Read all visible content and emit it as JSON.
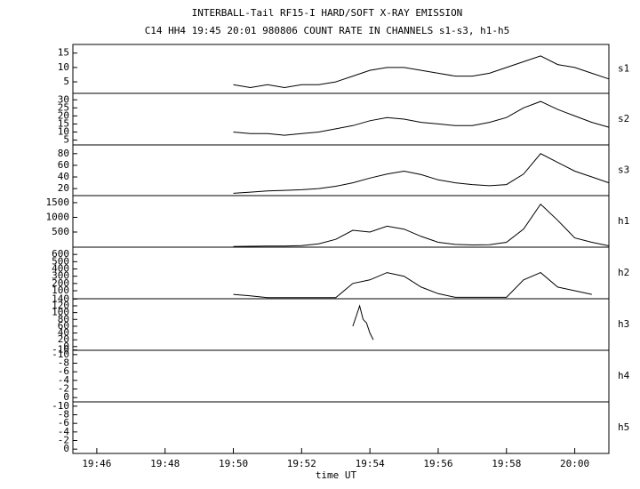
{
  "chart_data": [
    {
      "type": "line",
      "title": "INTERBALL-Tail RF15-I HARD/SOFT X-RAY EMISSION",
      "subtitle": "C14 HH4 19:45 20:01 980806  COUNT RATE IN CHANNELS s1-s3, h1-h5",
      "label": "s1",
      "x": [
        1190,
        1190.5,
        1191,
        1191.5,
        1192,
        1192.5,
        1193,
        1193.5,
        1194,
        1194.5,
        1195,
        1195.5,
        1196,
        1196.5,
        1197,
        1197.5,
        1198,
        1198.5,
        1199,
        1199.5,
        1200,
        1200.5,
        1201
      ],
      "values": [
        4,
        3,
        4,
        3,
        4,
        4,
        5,
        7,
        9,
        10,
        10,
        9,
        8,
        7,
        7,
        8,
        10,
        12,
        14,
        11,
        10,
        8,
        6
      ],
      "xlim": [
        1185.3,
        1201
      ],
      "ylim": [
        1,
        18
      ],
      "yticks": [
        5,
        10,
        15
      ],
      "color": "#000000"
    },
    {
      "type": "line",
      "label": "s2",
      "x": [
        1190,
        1190.5,
        1191,
        1191.5,
        1192,
        1192.5,
        1193,
        1193.5,
        1194,
        1194.5,
        1195,
        1195.5,
        1196,
        1196.5,
        1197,
        1197.5,
        1198,
        1198.5,
        1199,
        1199.5,
        1200,
        1200.5,
        1201
      ],
      "values": [
        10,
        9,
        9,
        8,
        9,
        10,
        12,
        14,
        17,
        19,
        18,
        16,
        15,
        14,
        14,
        16,
        19,
        25,
        29,
        24,
        20,
        16,
        13
      ],
      "xlim": [
        1185.3,
        1201
      ],
      "ylim": [
        2,
        34
      ],
      "yticks": [
        5,
        10,
        15,
        20,
        25,
        30
      ],
      "color": "#000000"
    },
    {
      "type": "line",
      "label": "s3",
      "x": [
        1190,
        1190.5,
        1191,
        1191.5,
        1192,
        1192.5,
        1193,
        1193.5,
        1194,
        1194.5,
        1195,
        1195.5,
        1196,
        1196.5,
        1197,
        1197.5,
        1198,
        1198.5,
        1199,
        1199.5,
        1200,
        1200.5,
        1201
      ],
      "values": [
        12,
        14,
        16,
        17,
        18,
        20,
        24,
        30,
        38,
        45,
        50,
        44,
        35,
        30,
        27,
        25,
        27,
        45,
        80,
        65,
        50,
        40,
        30
      ],
      "xlim": [
        1185.3,
        1201
      ],
      "ylim": [
        8,
        95
      ],
      "yticks": [
        20,
        40,
        60,
        80
      ],
      "color": "#000000"
    },
    {
      "type": "line",
      "label": "h1",
      "x": [
        1190,
        1190.5,
        1191,
        1191.5,
        1192,
        1192.5,
        1193,
        1193.5,
        1194,
        1194.5,
        1195,
        1195.5,
        1196,
        1196.5,
        1197,
        1197.5,
        1198,
        1198.5,
        1199,
        1199.5,
        1200,
        1200.5,
        1201
      ],
      "values": [
        10,
        15,
        20,
        25,
        40,
        100,
        250,
        560,
        500,
        700,
        600,
        350,
        150,
        80,
        60,
        70,
        150,
        600,
        1450,
        900,
        300,
        150,
        30
      ],
      "xlim": [
        1185.3,
        1201
      ],
      "ylim": [
        -15,
        1740
      ],
      "yticks": [
        500,
        1000,
        1500
      ],
      "color": "#000000"
    },
    {
      "type": "line",
      "label": "h2",
      "x": [
        1190,
        1190.5,
        1191,
        1191.5,
        1192,
        1192.5,
        1193,
        1193.5,
        1194,
        1194.5,
        1195,
        1195.5,
        1196,
        1196.5,
        1197,
        1197.5,
        1198,
        1198.5,
        1199,
        1199.5,
        1200,
        1200.5
      ],
      "values": [
        50,
        30,
        5,
        5,
        5,
        5,
        5,
        200,
        250,
        350,
        300,
        150,
        60,
        10,
        10,
        10,
        10,
        250,
        350,
        150,
        100,
        50
      ],
      "xlim": [
        1185.3,
        1201
      ],
      "ylim": [
        -10,
        700
      ],
      "yticks": [
        100,
        200,
        300,
        400,
        500,
        600
      ],
      "color": "#000000"
    },
    {
      "type": "line",
      "label": "h3",
      "x": [
        1193.5,
        1193.6,
        1193.7,
        1193.8,
        1193.9,
        1194,
        1194.1
      ],
      "values": [
        60,
        90,
        120,
        80,
        70,
        40,
        20
      ],
      "xlim": [
        1185.3,
        1201
      ],
      "ylim": [
        -11,
        141
      ],
      "yticks": [
        -10,
        0,
        20,
        40,
        60,
        80,
        100,
        120,
        140
      ],
      "color": "#000000"
    },
    {
      "type": "line",
      "label": "h4",
      "x": [],
      "values": [],
      "xlim": [
        1185.3,
        1201
      ],
      "ylim": [
        1,
        -11
      ],
      "yticks": [
        -10,
        -8,
        -6,
        -4,
        -2,
        0
      ],
      "color": "#000000"
    },
    {
      "type": "line",
      "label": "h5",
      "x": [],
      "values": [],
      "xlim": [
        1185.3,
        1201
      ],
      "ylim": [
        1,
        -11
      ],
      "yticks": [
        -10,
        -8,
        -6,
        -4,
        -2,
        0
      ],
      "color": "#000000",
      "xlabel": "time UT",
      "xticks": [
        {
          "value": 1186,
          "label": "19:46"
        },
        {
          "value": 1188,
          "label": "19:48"
        },
        {
          "value": 1190,
          "label": "19:50"
        },
        {
          "value": 1192,
          "label": "19:52"
        },
        {
          "value": 1194,
          "label": "19:54"
        },
        {
          "value": 1196,
          "label": "19:56"
        },
        {
          "value": 1198,
          "label": "19:58"
        },
        {
          "value": 1200,
          "label": "20:00"
        }
      ]
    }
  ]
}
